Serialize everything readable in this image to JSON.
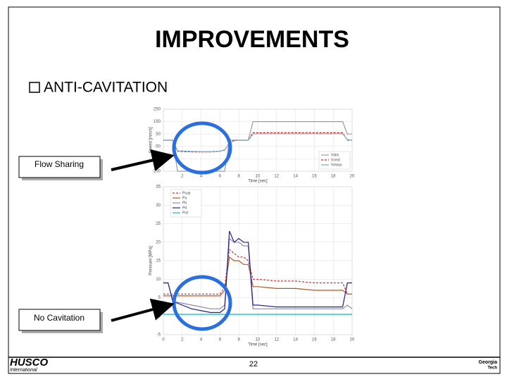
{
  "title": "IMPROVEMENTS",
  "bullet": "ANTI-CAVITATION",
  "callouts": [
    "Flow Sharing",
    "No Cavitation"
  ],
  "page_number": "22",
  "logo_left": {
    "name": "HUSCO",
    "sub": "International"
  },
  "logo_right": {
    "name": "Georgia",
    "sub": "Tech"
  },
  "chart_data": [
    {
      "type": "line",
      "x_label": "Time [sec]",
      "y_label": "Speed [mm/s]",
      "x": [
        0,
        1,
        1.5,
        3,
        4,
        5,
        6,
        6.5,
        7,
        7.5,
        8,
        9,
        9.5,
        10,
        12,
        14,
        16,
        18,
        19,
        19.5,
        20
      ],
      "series": [
        {
          "name": "Vdes",
          "color": "#9a9aa6",
          "dash": false,
          "values": [
            0,
            0,
            -250,
            -250,
            -250,
            -250,
            -250,
            -250,
            0,
            0,
            0,
            0,
            150,
            150,
            150,
            150,
            150,
            150,
            150,
            50,
            50
          ]
        },
        {
          "name": "Vcmd",
          "color": "#cc2222",
          "dash": true,
          "values": [
            0,
            0,
            -90,
            -95,
            -95,
            -95,
            -90,
            -80,
            -20,
            0,
            0,
            0,
            60,
            60,
            60,
            60,
            60,
            60,
            60,
            0,
            0
          ]
        },
        {
          "name": "Vmeas",
          "color": "#7fa8c8",
          "dash": false,
          "values": [
            0,
            0,
            -85,
            -90,
            -92,
            -92,
            -88,
            -78,
            -25,
            -5,
            0,
            0,
            50,
            52,
            52,
            52,
            52,
            52,
            52,
            5,
            0
          ]
        }
      ],
      "xlim": [
        0,
        20
      ],
      "xticks": [
        2,
        4,
        6,
        8,
        10,
        12,
        14,
        16,
        18,
        20
      ],
      "ylim": [
        -250,
        250
      ],
      "yticks": [
        -250,
        -150,
        -50,
        50,
        150,
        250
      ],
      "grid": true,
      "legend": "lower right"
    },
    {
      "type": "line",
      "x_label": "Time [sec]",
      "y_label": "Pressure [MPa]",
      "x": [
        0,
        0.5,
        1,
        2,
        3,
        4,
        5,
        6,
        6.5,
        7,
        7.5,
        8,
        8.5,
        9,
        9.5,
        10,
        12,
        14,
        16,
        18,
        19,
        19.5,
        20
      ],
      "series": [
        {
          "name": "Psup",
          "color": "#d03030",
          "dash": true,
          "values": [
            6,
            6,
            6,
            6,
            6,
            6,
            6,
            6,
            8,
            18,
            17,
            16,
            16,
            15,
            10,
            10,
            9.5,
            9.5,
            9,
            9,
            9,
            6,
            6
          ]
        },
        {
          "name": "Pa",
          "color": "#b05a20",
          "dash": false,
          "values": [
            5.5,
            5.5,
            5.5,
            5.5,
            5.5,
            5.5,
            5.5,
            5.5,
            7,
            16,
            15,
            15,
            14,
            14,
            8,
            8,
            7.5,
            7.5,
            7,
            7,
            7,
            6,
            6
          ]
        },
        {
          "name": "Pb",
          "color": "#8a8ab0",
          "dash": false,
          "values": [
            9,
            9,
            4,
            3.5,
            3,
            2.5,
            2,
            2,
            3,
            21,
            20,
            20,
            19,
            19,
            2,
            2,
            2,
            2,
            2,
            2,
            2,
            3,
            2
          ]
        },
        {
          "name": "Pd",
          "color": "#20208a",
          "dash": false,
          "values": [
            9,
            9,
            4,
            3,
            2,
            1.5,
            1,
            1,
            2,
            23,
            20,
            21,
            20,
            20,
            3,
            3,
            2.5,
            2.5,
            2.5,
            2.5,
            2.5,
            9,
            9
          ]
        },
        {
          "name": "Prd",
          "color": "#20b0b0",
          "dash": false,
          "values": [
            0.5,
            0.5,
            0.5,
            0.5,
            0.5,
            0.5,
            0.5,
            0.5,
            0.5,
            0.5,
            0.5,
            0.5,
            0.5,
            0.5,
            0.5,
            0.5,
            0.5,
            0.5,
            0.5,
            0.5,
            0.5,
            0.5,
            0.5
          ]
        }
      ],
      "xlim": [
        0,
        20
      ],
      "xticks": [
        0,
        2,
        4,
        6,
        8,
        10,
        12,
        14,
        16,
        18,
        20
      ],
      "ylim": [
        -5,
        35
      ],
      "yticks": [
        -5,
        0,
        5,
        10,
        15,
        20,
        25,
        30,
        35
      ],
      "grid": true,
      "legend": "upper left"
    }
  ]
}
